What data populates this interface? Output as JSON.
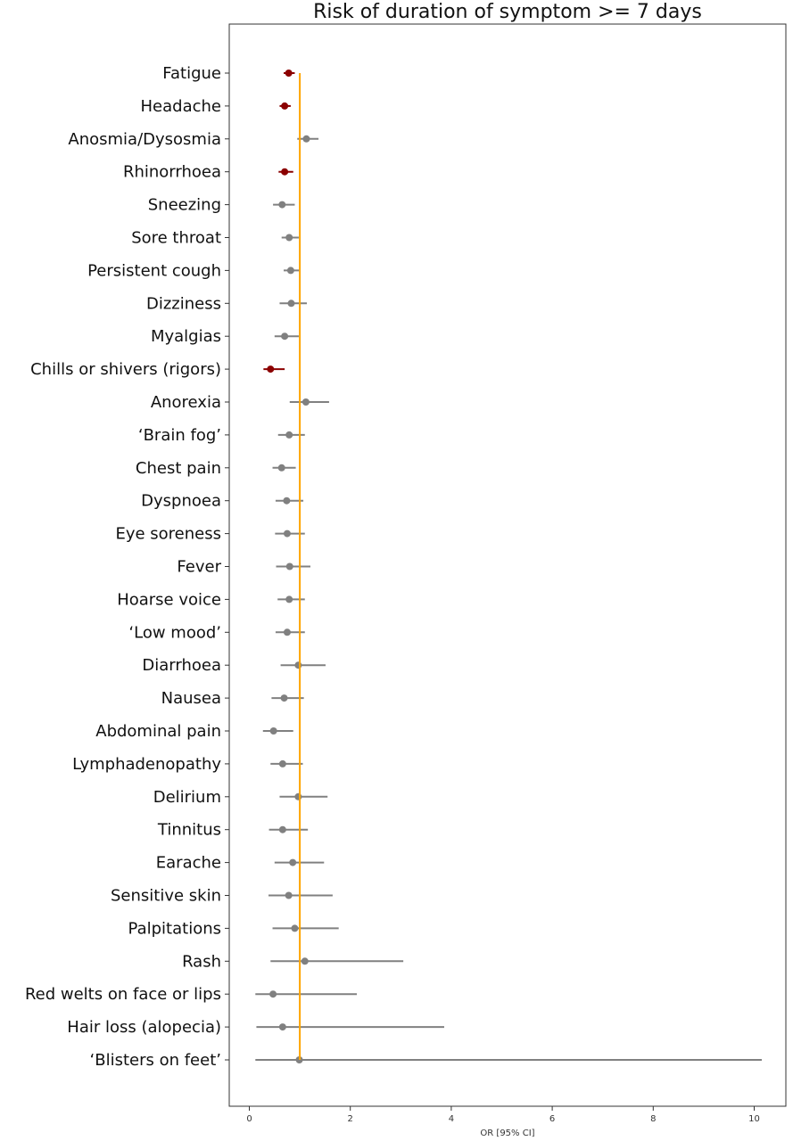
{
  "chart_data": {
    "type": "scatter",
    "title": "Risk of duration of symptom >= 7 days",
    "xlabel": "OR [95% CI]",
    "ylabel": "",
    "xlim": [
      -0.4,
      10.6
    ],
    "xticks": [
      "0",
      "2",
      "4",
      "6",
      "8",
      "10"
    ],
    "reference_line": 1,
    "grid": false,
    "colors": {
      "significant": "#8b0000",
      "nonsignificant": "#808080",
      "reference_line": "#ffa500",
      "frame": "#333333"
    },
    "items": [
      {
        "label": "Fatigue",
        "or": 0.78,
        "lo": 0.68,
        "hi": 0.9,
        "significant": true
      },
      {
        "label": "Headache",
        "or": 0.7,
        "lo": 0.6,
        "hi": 0.82,
        "significant": true
      },
      {
        "label": "Anosmia/Dysosmia",
        "or": 1.13,
        "lo": 0.95,
        "hi": 1.37,
        "significant": false
      },
      {
        "label": "Rhinorrhoea",
        "or": 0.7,
        "lo": 0.58,
        "hi": 0.87,
        "significant": true
      },
      {
        "label": "Sneezing",
        "or": 0.65,
        "lo": 0.47,
        "hi": 0.9,
        "significant": false
      },
      {
        "label": "Sore throat",
        "or": 0.79,
        "lo": 0.64,
        "hi": 0.98,
        "significant": false
      },
      {
        "label": "Persistent cough",
        "or": 0.82,
        "lo": 0.68,
        "hi": 0.99,
        "significant": false
      },
      {
        "label": "Dizziness",
        "or": 0.83,
        "lo": 0.6,
        "hi": 1.14,
        "significant": false
      },
      {
        "label": "Myalgias",
        "or": 0.7,
        "lo": 0.5,
        "hi": 0.98,
        "significant": false
      },
      {
        "label": "Chills or shivers (rigors)",
        "or": 0.42,
        "lo": 0.28,
        "hi": 0.7,
        "significant": true
      },
      {
        "label": "Anorexia",
        "or": 1.12,
        "lo": 0.8,
        "hi": 1.58,
        "significant": false
      },
      {
        "label": "‘Brain fog’",
        "or": 0.79,
        "lo": 0.57,
        "hi": 1.1,
        "significant": false
      },
      {
        "label": "Chest pain",
        "or": 0.64,
        "lo": 0.46,
        "hi": 0.92,
        "significant": false
      },
      {
        "label": "Dyspnoea",
        "or": 0.74,
        "lo": 0.52,
        "hi": 1.07,
        "significant": false
      },
      {
        "label": "Eye soreness",
        "or": 0.75,
        "lo": 0.51,
        "hi": 1.1,
        "significant": false
      },
      {
        "label": "Fever",
        "or": 0.8,
        "lo": 0.53,
        "hi": 1.21,
        "significant": false
      },
      {
        "label": "Hoarse voice",
        "or": 0.79,
        "lo": 0.56,
        "hi": 1.1,
        "significant": false
      },
      {
        "label": "‘Low mood’",
        "or": 0.75,
        "lo": 0.52,
        "hi": 1.1,
        "significant": false
      },
      {
        "label": "Diarrhoea",
        "or": 0.97,
        "lo": 0.62,
        "hi": 1.51,
        "significant": false
      },
      {
        "label": "Nausea",
        "or": 0.69,
        "lo": 0.44,
        "hi": 1.08,
        "significant": false
      },
      {
        "label": "Abdominal pain",
        "or": 0.48,
        "lo": 0.27,
        "hi": 0.87,
        "significant": false
      },
      {
        "label": "Lymphadenopathy",
        "or": 0.66,
        "lo": 0.42,
        "hi": 1.06,
        "significant": false
      },
      {
        "label": "Delirium",
        "or": 0.97,
        "lo": 0.6,
        "hi": 1.55,
        "significant": false
      },
      {
        "label": "Tinnitus",
        "or": 0.66,
        "lo": 0.39,
        "hi": 1.16,
        "significant": false
      },
      {
        "label": "Earache",
        "or": 0.86,
        "lo": 0.5,
        "hi": 1.48,
        "significant": false
      },
      {
        "label": "Sensitive skin",
        "or": 0.78,
        "lo": 0.38,
        "hi": 1.65,
        "significant": false
      },
      {
        "label": "Palpitations",
        "or": 0.9,
        "lo": 0.46,
        "hi": 1.77,
        "significant": false
      },
      {
        "label": "Rash",
        "or": 1.1,
        "lo": 0.42,
        "hi": 3.05,
        "significant": false
      },
      {
        "label": "Red welts on face or lips",
        "or": 0.47,
        "lo": 0.12,
        "hi": 2.13,
        "significant": false
      },
      {
        "label": "Hair loss (alopecia)",
        "or": 0.66,
        "lo": 0.14,
        "hi": 3.86,
        "significant": false
      },
      {
        "label": "‘Blisters on feet’",
        "or": 0.99,
        "lo": 0.12,
        "hi": 10.15,
        "significant": false
      }
    ]
  }
}
